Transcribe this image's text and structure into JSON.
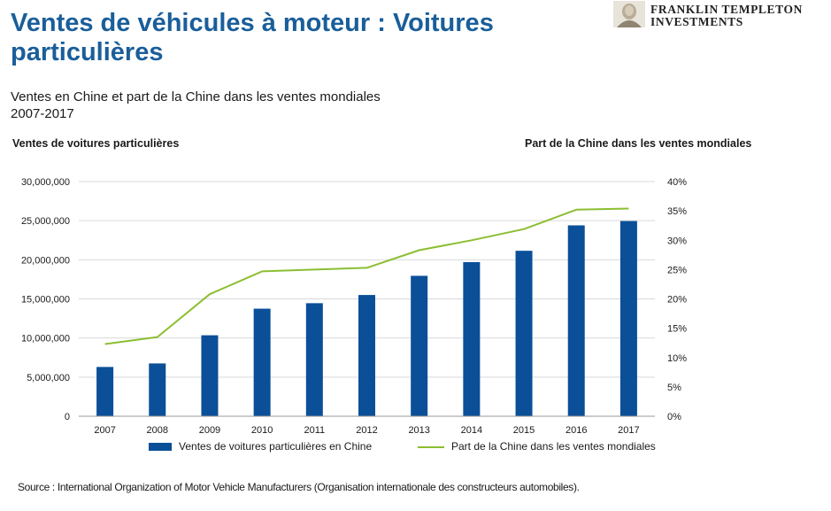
{
  "header": {
    "title": "Ventes de véhicules à moteur : Voitures particulières",
    "subtitle_line1": "Ventes en Chine et part de la Chine dans les ventes mondiales",
    "subtitle_line2": "2007-2017"
  },
  "brand": {
    "line1": "FRANKLIN TEMPLETON",
    "line2": "INVESTMENTS"
  },
  "source": "Source : International Organization of Motor Vehicle Manufacturers (Organisation internationale des constructeurs automobiles).",
  "colors": {
    "bar": "#0a4f98",
    "line": "#8cbe32",
    "title": "#1a5e9a",
    "grid": "#d9d9d9"
  },
  "chart_data": {
    "type": "bar",
    "categories": [
      "2007",
      "2008",
      "2009",
      "2010",
      "2011",
      "2012",
      "2013",
      "2014",
      "2015",
      "2016",
      "2017"
    ],
    "ylabel": "Ventes de voitures particulières",
    "y2label": "Part de la Chine dans les ventes mondiales",
    "ylim": [
      0,
      30000000
    ],
    "y2lim": [
      0,
      0.4
    ],
    "y_ticks": [
      "0",
      "5,000,000",
      "10,000,000",
      "15,000,000",
      "20,000,000",
      "25,000,000",
      "30,000,000"
    ],
    "y2_ticks": [
      "0%",
      "5%",
      "10%",
      "15%",
      "20%",
      "25%",
      "30%",
      "35%",
      "40%"
    ],
    "grid": "horizontal",
    "legend_position": "bottom",
    "series": [
      {
        "name": "Ventes de voitures particulières en Chine",
        "type": "bar",
        "axis": "left",
        "values": [
          6300000,
          6750000,
          10350000,
          13750000,
          14450000,
          15500000,
          17950000,
          19700000,
          21150000,
          24400000,
          24950000
        ]
      },
      {
        "name": "Part de la Chine dans les ventes mondiales",
        "type": "line",
        "axis": "right",
        "values": [
          0.123,
          0.135,
          0.208,
          0.247,
          0.25,
          0.253,
          0.283,
          0.3,
          0.319,
          0.352,
          0.354
        ]
      }
    ]
  }
}
